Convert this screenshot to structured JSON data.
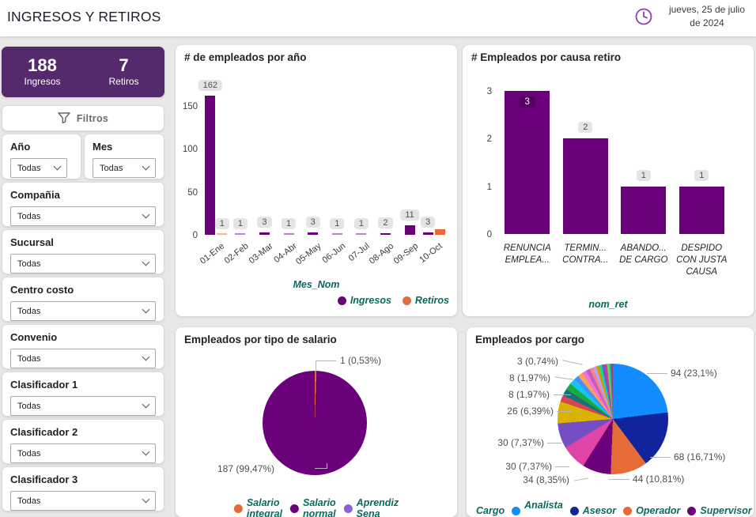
{
  "header": {
    "title": "INGRESOS Y RETIROS",
    "date_line1": "jueves, 25 de julio",
    "date_line2": "de 2024"
  },
  "kpi": {
    "ingresos_value": "188",
    "ingresos_label": "Ingresos",
    "retiros_value": "7",
    "retiros_label": "Retiros"
  },
  "filters": {
    "title": "Filtros",
    "items": [
      {
        "label": "Año",
        "value": "Todas"
      },
      {
        "label": "Mes",
        "value": "Todas"
      },
      {
        "label": "Compañia",
        "value": "Todas"
      },
      {
        "label": "Sucursal",
        "value": "Todas"
      },
      {
        "label": "Centro costo",
        "value": "Todas"
      },
      {
        "label": "Convenio",
        "value": "Todas"
      },
      {
        "label": "Clasificador 1",
        "value": "Todas"
      },
      {
        "label": "Clasificador 2",
        "value": "Todas"
      },
      {
        "label": "Clasificador 3",
        "value": "Todas"
      }
    ]
  },
  "colors": {
    "purple": "#6B007B",
    "orange": "#E66C37",
    "kpi_bg": "#542A6D",
    "axis_title_green": "#0B6A5D",
    "page_bg": "#EAE8E6"
  },
  "chart_data": [
    {
      "id": "empleados_por_ano",
      "type": "bar",
      "title": "# de empleados por año",
      "xlabel": "Mes_Nom",
      "categories": [
        "01-Ene",
        "02-Feb",
        "03-Mar",
        "04-Abr",
        "05-May",
        "06-Jun",
        "07-Jul",
        "08-Ago",
        "09-Sep",
        "10-Oct"
      ],
      "series": [
        {
          "name": "Ingresos",
          "color": "#6B007B",
          "tiny_color": "#BD80CB",
          "values": [
            162,
            1,
            3,
            1,
            3,
            1,
            1,
            2,
            11,
            3
          ],
          "labels": [
            "162",
            "1",
            "3",
            "1",
            "3",
            "1",
            "1",
            "2",
            "11",
            "3"
          ]
        },
        {
          "name": "Retiros",
          "color": "#E66C37",
          "tiny_color": "#F2B88F",
          "values": [
            1,
            0,
            0,
            0,
            0,
            0,
            0,
            0,
            0,
            6
          ],
          "labels": [
            "1",
            null,
            null,
            null,
            null,
            null,
            null,
            null,
            null,
            null
          ]
        }
      ],
      "yticks": [
        0,
        50,
        100,
        150
      ],
      "ylim": [
        0,
        165
      ],
      "grid": false,
      "legend_position": "bottom-right"
    },
    {
      "id": "empleados_por_causa_retiro",
      "type": "bar",
      "title": "# Empleados por causa retiro",
      "xlabel": "nom_ret",
      "categories": [
        "RENUNCIA EMPLEA...",
        "TERMIN... CONTRA...",
        "ABANDO... DE CARGO",
        "DESPIDO CON JUSTA CAUSA"
      ],
      "values": [
        3,
        2,
        1,
        1
      ],
      "labels": [
        "3",
        "2",
        "1",
        "1"
      ],
      "color": "#6B007B",
      "yticks": [
        0,
        1,
        2,
        3
      ],
      "ylim": [
        0,
        3.1
      ],
      "grid": false
    },
    {
      "id": "empleados_por_tipo_salario",
      "type": "pie",
      "title": "Empleados por tipo de salario",
      "slices": [
        {
          "name": "Salario integral",
          "value": 1,
          "color": "#E66C37",
          "label": "1 (0,53%)"
        },
        {
          "name": "Salario normal",
          "value": 187,
          "color": "#6B007B",
          "label": "187 (99,47%)"
        },
        {
          "name": "Aprendiz Sena",
          "value": 0,
          "color": "#8A64D6"
        }
      ],
      "labels": [
        "1 (0,53%)",
        "187 (99,47%)"
      ],
      "legend": [
        {
          "name": "Salario integral",
          "color": "#E66C37"
        },
        {
          "name": "Salario normal",
          "color": "#6B007B"
        },
        {
          "name": "Aprendiz Sena",
          "color": "#8A64D6"
        }
      ]
    },
    {
      "id": "empleados_por_cargo",
      "type": "pie",
      "title": "Empleados por cargo",
      "legend_title": "Cargo",
      "slices": [
        {
          "name": "Analista ...",
          "value": 94,
          "color": "#118DFF",
          "label": "94 (23,1%)"
        },
        {
          "name": "Asesor",
          "value": 68,
          "color": "#12239E",
          "label": "68 (16,71%)"
        },
        {
          "name": "Operador",
          "value": 44,
          "color": "#E66C37",
          "label": "44 (10,81%)"
        },
        {
          "name": "Supervisor",
          "value": 34,
          "color": "#6B007B",
          "label": "34 (8,35%)"
        },
        {
          "value": 30,
          "color": "#E044A7",
          "label": "30 (7,37%)"
        },
        {
          "value": 30,
          "color": "#744EC2",
          "label": "30 (7,37%)"
        },
        {
          "value": 26,
          "color": "#D9B300",
          "label": "26 (6,39%)"
        },
        {
          "value": 8,
          "color": "#D64550",
          "label": "8 (1,97%)"
        },
        {
          "value": 8,
          "color": "#197278",
          "label": "8 (1,97%)"
        },
        {
          "value": 8,
          "color": "#1AAB40"
        },
        {
          "value": 7,
          "color": "#15C6F4"
        },
        {
          "value": 6,
          "color": "#4092FF"
        },
        {
          "value": 6,
          "color": "#FFA058"
        },
        {
          "value": 5,
          "color": "#F472D0"
        },
        {
          "value": 5,
          "color": "#BE5DC9"
        },
        {
          "value": 4,
          "color": "#FF8080"
        },
        {
          "value": 4,
          "color": "#B5A1FF"
        },
        {
          "value": 4,
          "color": "#C4A200"
        },
        {
          "value": 3,
          "color": "#00DBBC",
          "label": "3 (0,74%)"
        },
        {
          "value": 3,
          "color": "#8250C4"
        },
        {
          "value": 3,
          "color": "#C83D95"
        },
        {
          "value": 3,
          "color": "#5BD667"
        },
        {
          "value": 2,
          "color": "#2AA0A4"
        },
        {
          "value": 2,
          "color": "#A43B76"
        }
      ],
      "labels": [
        "3 (0,74%)",
        "8 (1,97%)",
        "8 (1,97%)",
        "26 (6,39%)",
        "30 (7,37%)",
        "30 (7,37%)",
        "34 (8,35%)",
        "94 (23,1%)",
        "68 (16,71%)",
        "44 (10,81%)"
      ],
      "legend": [
        {
          "name": "Analista ...",
          "color": "#118DFF"
        },
        {
          "name": "Asesor",
          "color": "#12239E"
        },
        {
          "name": "Operador",
          "color": "#E66C37"
        },
        {
          "name": "Supervisor",
          "color": "#6B007B"
        }
      ],
      "legend_more": "►"
    }
  ]
}
